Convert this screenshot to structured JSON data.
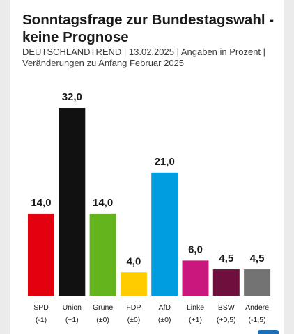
{
  "chart_data": {
    "type": "bar",
    "title": "Sonntagsfrage zur Bundestagswahl - keine Prognose",
    "subtitle_line1": "DEUTSCHLANDTREND | 13.02.2025 | Angaben in Prozent |",
    "subtitle_line2": "Veränderungen zu Anfang Februar 2025",
    "categories": [
      "SPD",
      "Union",
      "Grüne",
      "FDP",
      "AfD",
      "Linke",
      "BSW",
      "Andere"
    ],
    "values": [
      14.0,
      32.0,
      14.0,
      4.0,
      21.0,
      6.0,
      4.5,
      4.5
    ],
    "value_labels": [
      "14,0",
      "32,0",
      "14,0",
      "4,0",
      "21,0",
      "6,0",
      "4,5",
      "4,5"
    ],
    "changes": [
      "(-1)",
      "(+1)",
      "(±0)",
      "(±0)",
      "(±0)",
      "(+1)",
      "(+0,5)",
      "(-1,5)"
    ],
    "colors": [
      "#e3000f",
      "#111111",
      "#64b41e",
      "#ffcc00",
      "#009ee0",
      "#c9177e",
      "#6f0f3d",
      "#737373"
    ],
    "ylim": [
      0,
      32
    ],
    "grid": false,
    "legend": "none"
  }
}
